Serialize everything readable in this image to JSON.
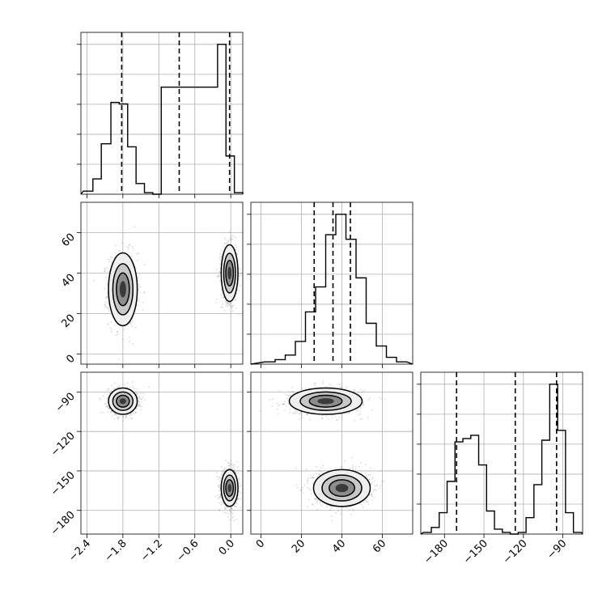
{
  "chart_data": {
    "type": "corner",
    "grid": true,
    "parameters": [
      {
        "key": "p0",
        "range": [
          -2.5,
          0.2
        ],
        "ticks": [
          -2.4,
          -1.8,
          -1.2,
          -0.6,
          0.0
        ],
        "tick_labels": [
          "−2.4",
          "−1.8",
          "−1.2",
          "−0.6",
          "0.0"
        ]
      },
      {
        "key": "p1",
        "range": [
          -5,
          75
        ],
        "ticks": [
          0,
          20,
          40,
          60
        ],
        "tick_labels": [
          "0",
          "20",
          "40",
          "60"
        ]
      },
      {
        "key": "p2",
        "range": [
          -198,
          -75
        ],
        "ticks": [
          -180,
          -150,
          -120,
          -90
        ],
        "tick_labels": [
          "−180",
          "−150",
          "−120",
          "−90"
        ]
      }
    ],
    "quantile_lines": {
      "p0": [
        -1.82,
        -0.86,
        -0.02
      ],
      "p1": [
        26.3,
        35.6,
        44.2
      ],
      "p2": [
        -170.8,
        -126.2,
        -94.8
      ]
    },
    "histograms": {
      "p0": {
        "edges": [
          -2.46,
          -2.3,
          -2.16,
          -2.0,
          -1.86,
          -1.72,
          -1.58,
          -1.44,
          -1.3,
          -1.16,
          -0.22,
          -0.08,
          0.06,
          0.2
        ],
        "counts": [
          2,
          10,
          33,
          60,
          59,
          31,
          7,
          1,
          0,
          70,
          98,
          25,
          1
        ]
      },
      "p1": [
        {
          "x0": 2,
          "x1": 7,
          "count": 1
        },
        {
          "x0": 7,
          "x1": 12,
          "count": 2
        },
        {
          "x0": 12,
          "x1": 17,
          "count": 4
        },
        {
          "x0": 17,
          "x1": 22,
          "count": 10
        },
        {
          "x0": 22,
          "x1": 27,
          "count": 23
        },
        {
          "x0": 27,
          "x1": 32,
          "count": 34
        },
        {
          "x0": 32,
          "x1": 37,
          "count": 57
        },
        {
          "x0": 37,
          "x1": 42,
          "count": 66
        },
        {
          "x0": 42,
          "x1": 47,
          "count": 55
        },
        {
          "x0": 47,
          "x1": 52,
          "count": 38
        },
        {
          "x0": 52,
          "x1": 57,
          "count": 18
        },
        {
          "x0": 57,
          "x1": 62,
          "count": 8
        },
        {
          "x0": 62,
          "x1": 67,
          "count": 3
        },
        {
          "x0": 67,
          "x1": 72,
          "count": 1
        }
      ],
      "p2": {
        "edges": [
          -196,
          -190,
          -184,
          -178,
          -172,
          -166,
          -160,
          -154,
          -148,
          -142,
          -136,
          -130,
          -124,
          -118,
          -112,
          -106,
          -100,
          -94,
          -88,
          -82,
          -76
        ],
        "counts": [
          1,
          4,
          13,
          32,
          56,
          58,
          60,
          42,
          14,
          3,
          1,
          0,
          1,
          10,
          30,
          57,
          91,
          63,
          13,
          1
        ]
      }
    },
    "clusters": [
      {
        "center": {
          "p0": -1.8,
          "p1": 32,
          "p2": -97
        },
        "spread": {
          "p0": 0.12,
          "p1": 9,
          "p2": 5
        }
      },
      {
        "center": {
          "p0": -0.02,
          "p1": 40,
          "p2": -163
        },
        "spread": {
          "p0": 0.07,
          "p1": 7,
          "p2": 7
        }
      }
    ]
  }
}
